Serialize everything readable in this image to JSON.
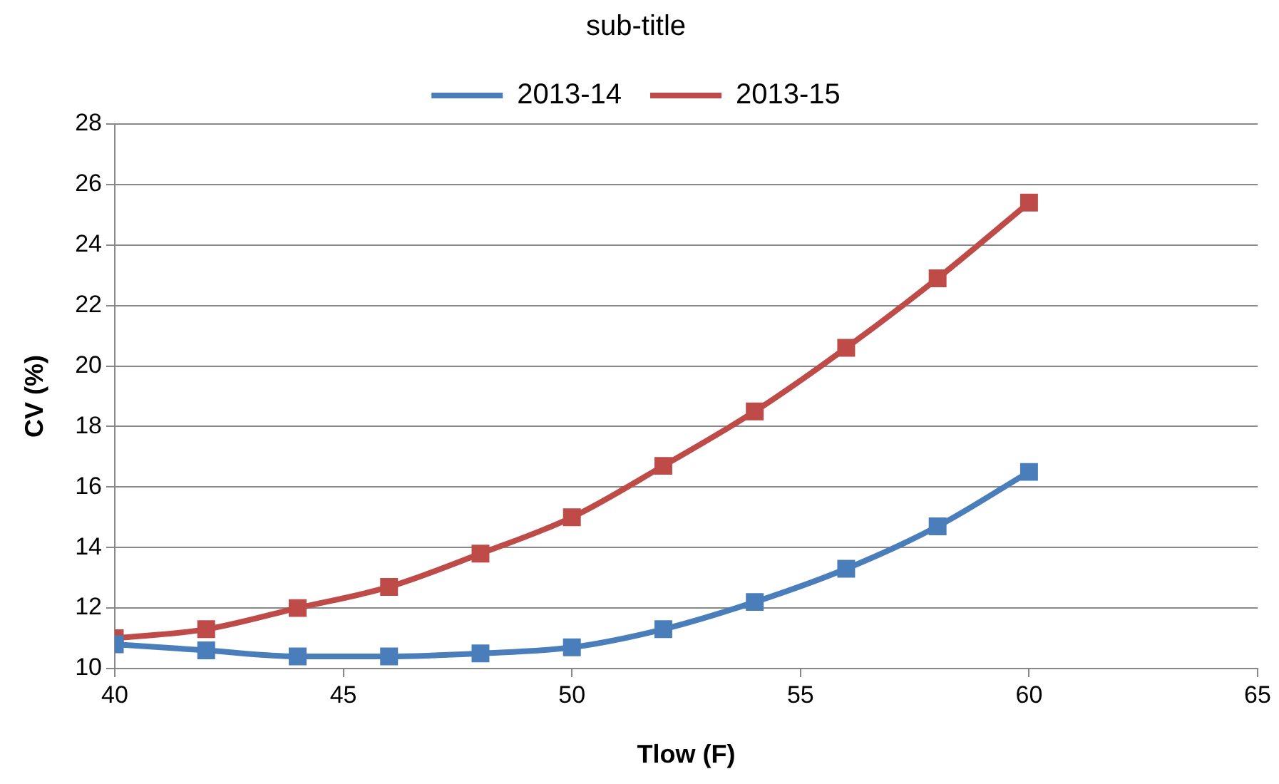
{
  "chart_data": {
    "type": "line",
    "title": "sub-title",
    "xlabel": "Tlow (F)",
    "ylabel": "CV (%)",
    "x": [
      40,
      42,
      44,
      46,
      48,
      50,
      52,
      54,
      56,
      58,
      60
    ],
    "series": [
      {
        "name": "2013-14",
        "color": "#4a7ebb",
        "values": [
          10.8,
          10.6,
          10.4,
          10.4,
          10.5,
          10.7,
          11.3,
          12.2,
          13.3,
          14.7,
          16.5
        ]
      },
      {
        "name": "2013-15",
        "color": "#be4b48",
        "values": [
          11.0,
          11.3,
          12.0,
          12.7,
          13.8,
          15.0,
          16.7,
          18.5,
          20.6,
          22.9,
          25.4
        ]
      }
    ],
    "xlim": [
      40,
      65
    ],
    "xticks": [
      40,
      45,
      50,
      55,
      60,
      65
    ],
    "ylim": [
      10,
      28
    ],
    "yticks": [
      10,
      12,
      14,
      16,
      18,
      20,
      22,
      24,
      26,
      28
    ],
    "grid": "y",
    "legend": "top",
    "marker": "square",
    "line_style": "solid"
  }
}
